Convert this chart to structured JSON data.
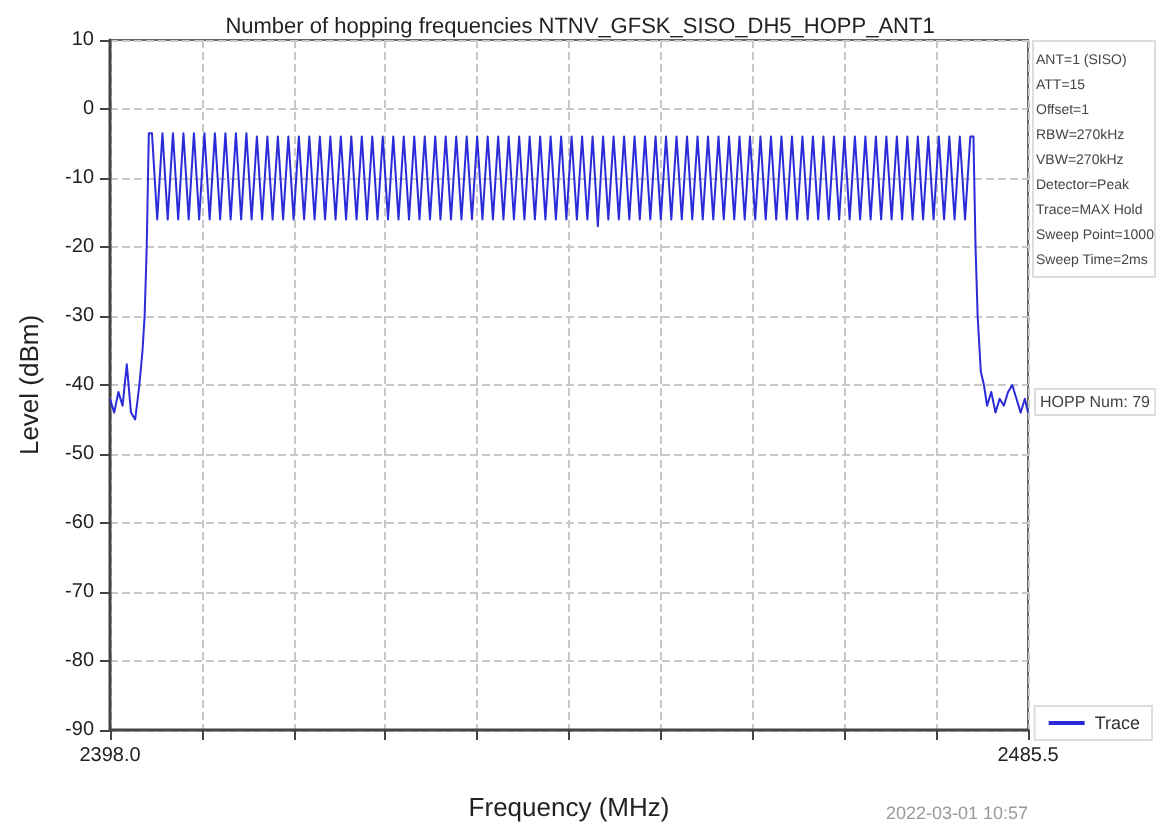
{
  "chart_data": {
    "type": "line",
    "title": "Number of hopping frequencies NTNV_GFSK_SISO_DH5_HOPP_ANT1",
    "xlabel": "Frequency (MHz)",
    "ylabel": "Level (dBm)",
    "annotations": [
      "ANT=1 (SISO)\nATT=15\nOffset=1\nRBW=270kHz\nVBW=270kHz\nDetector=Peak\nTrace=MAX Hold\nSweep Point=1000\nSweep Time=2ms",
      "HOPP Num: 79",
      "2022-03-01 10:57"
    ],
    "xlim": [
      2398.0,
      2485.5
    ],
    "ylim": [
      -90,
      10
    ],
    "xticks": [
      {
        "value": 2398.0,
        "label": "2398.0"
      },
      {
        "value": 2406.75,
        "label": null
      },
      {
        "value": 2415.5,
        "label": null
      },
      {
        "value": 2424.25,
        "label": null
      },
      {
        "value": 2433,
        "label": null
      },
      {
        "value": 2441.75,
        "label": null
      },
      {
        "value": 2450.5,
        "label": null
      },
      {
        "value": 2459.25,
        "label": null
      },
      {
        "value": 2468,
        "label": null
      },
      {
        "value": 2476.75,
        "label": null
      },
      {
        "value": 2485.5,
        "label": "2485.5"
      }
    ],
    "yticks": [
      -90,
      -80,
      -70,
      -60,
      -50,
      -40,
      -30,
      -20,
      -10,
      0,
      10
    ],
    "grid": true,
    "legend": "bottom right",
    "marker": "none",
    "line_style": "solid",
    "series": [
      {
        "name": "Trace",
        "color": "#2b2bd9",
        "x": [
          2398,
          2398.4,
          2398.8,
          2399.2,
          2399.6,
          2400,
          2400.4,
          2400.8,
          2401.1,
          2401.3,
          2401.5,
          2401.7,
          2402,
          2402.5,
          2403,
          2403.5,
          2404,
          2404.5,
          2405,
          2405.5,
          2406,
          2406.5,
          2407,
          2407.5,
          2408,
          2408.5,
          2409,
          2409.5,
          2410,
          2410.5,
          2411,
          2411.5,
          2412,
          2412.5,
          2413,
          2413.5,
          2414,
          2414.5,
          2415,
          2415.5,
          2416,
          2416.5,
          2417,
          2417.5,
          2418,
          2418.5,
          2419,
          2419.5,
          2420,
          2420.5,
          2421,
          2421.5,
          2422,
          2422.5,
          2423,
          2423.5,
          2424,
          2424.5,
          2425,
          2425.5,
          2426,
          2426.5,
          2427,
          2427.5,
          2428,
          2428.5,
          2429,
          2429.5,
          2430,
          2430.5,
          2431,
          2431.5,
          2432,
          2432.5,
          2433,
          2433.5,
          2434,
          2434.5,
          2435,
          2435.5,
          2436,
          2436.5,
          2437,
          2437.5,
          2438,
          2438.5,
          2439,
          2439.5,
          2440,
          2440.5,
          2441,
          2441.5,
          2442,
          2442.5,
          2443,
          2443.5,
          2444,
          2444.5,
          2445,
          2445.5,
          2446,
          2446.5,
          2447,
          2447.5,
          2448,
          2448.5,
          2449,
          2449.5,
          2450,
          2450.5,
          2451,
          2451.5,
          2452,
          2452.5,
          2453,
          2453.5,
          2454,
          2454.5,
          2455,
          2455.5,
          2456,
          2456.5,
          2457,
          2457.5,
          2458,
          2458.5,
          2459,
          2459.5,
          2460,
          2460.5,
          2461,
          2461.5,
          2462,
          2462.5,
          2463,
          2463.5,
          2464,
          2464.5,
          2465,
          2465.5,
          2466,
          2466.5,
          2467,
          2467.5,
          2468,
          2468.5,
          2469,
          2469.5,
          2470,
          2470.5,
          2471,
          2471.5,
          2472,
          2472.5,
          2473,
          2473.5,
          2474,
          2474.5,
          2475,
          2475.5,
          2476,
          2476.5,
          2477,
          2477.5,
          2478,
          2478.5,
          2479,
          2479.5,
          2480,
          2480.3,
          2480.5,
          2480.7,
          2481,
          2481.3,
          2481.6,
          2482,
          2482.4,
          2482.8,
          2483.2,
          2483.6,
          2484,
          2484.4,
          2484.8,
          2485.2,
          2485.5
        ],
        "values": [
          -42,
          -44,
          -41,
          -43,
          -37,
          -44,
          -45,
          -40,
          -35,
          -30,
          -20,
          -3.5,
          -3.5,
          -16,
          -3.5,
          -16,
          -3.5,
          -16,
          -3.5,
          -16,
          -3.5,
          -16,
          -3.5,
          -16,
          -3.5,
          -16,
          -3.5,
          -16,
          -3.5,
          -16,
          -3.5,
          -16,
          -4,
          -16,
          -4,
          -16,
          -4,
          -16,
          -4,
          -16,
          -4,
          -16,
          -4,
          -16,
          -4,
          -16,
          -4,
          -16,
          -4,
          -16,
          -4,
          -16,
          -4,
          -16,
          -4,
          -16,
          -4,
          -16,
          -4,
          -16,
          -4,
          -16,
          -4,
          -16,
          -4,
          -16,
          -4,
          -16,
          -4,
          -16,
          -4,
          -16,
          -4,
          -16,
          -4,
          -16,
          -4,
          -16,
          -4,
          -16,
          -4,
          -16,
          -4,
          -16,
          -4,
          -16,
          -4,
          -16,
          -4,
          -16,
          -4,
          -16,
          -4,
          -16,
          -4,
          -16,
          -4,
          -17,
          -4,
          -16,
          -4,
          -16,
          -4,
          -16,
          -4,
          -16,
          -4,
          -16,
          -4,
          -16,
          -4,
          -16,
          -4,
          -16,
          -4,
          -16,
          -4,
          -16,
          -4,
          -16,
          -4,
          -16,
          -4,
          -16,
          -4,
          -16,
          -4,
          -16,
          -4,
          -16,
          -4,
          -16,
          -4,
          -16,
          -4,
          -16,
          -4,
          -16,
          -4,
          -16,
          -4,
          -16,
          -4,
          -16,
          -4,
          -16,
          -4,
          -16,
          -4,
          -16,
          -4,
          -16,
          -4,
          -16,
          -4,
          -16,
          -4,
          -16,
          -4,
          -16,
          -4,
          -16,
          -4,
          -16,
          -4,
          -16,
          -4,
          -16,
          -4,
          -4,
          -20,
          -30,
          -38,
          -40,
          -43,
          -41,
          -44,
          -42,
          -43,
          -41,
          -40,
          -42,
          -44,
          -42,
          -44
        ]
      }
    ]
  }
}
